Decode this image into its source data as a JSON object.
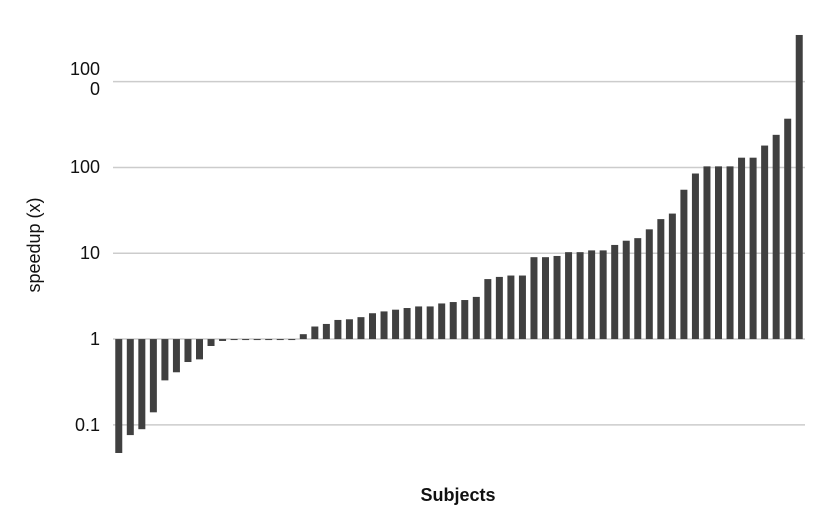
{
  "chart_data": {
    "type": "bar",
    "x_label": "Subjects",
    "y_label": "speedup (x)",
    "categories": [
      null,
      null,
      null,
      null,
      null,
      null,
      null,
      null,
      null,
      null,
      null,
      null,
      null,
      null,
      null,
      null,
      null,
      null,
      null,
      null,
      null,
      null,
      null,
      null,
      null,
      null,
      null,
      null,
      null,
      null,
      null,
      null,
      null,
      null,
      null,
      null,
      null,
      null,
      null,
      null,
      null,
      null,
      null,
      null,
      null,
      null,
      null,
      null,
      null,
      null,
      null,
      null,
      null,
      null,
      null,
      null,
      null,
      null,
      null,
      null
    ],
    "values": [
      0.047,
      0.076,
      0.089,
      0.14,
      0.33,
      0.41,
      0.54,
      0.58,
      0.83,
      0.95,
      1,
      1,
      1,
      1,
      1,
      1,
      1.14,
      1.4,
      1.5,
      1.67,
      1.7,
      1.8,
      2.0,
      2.1,
      2.2,
      2.3,
      2.4,
      2.4,
      2.6,
      2.7,
      2.85,
      3.1,
      5.0,
      5.3,
      5.5,
      5.5,
      9.0,
      9.0,
      9.3,
      10.3,
      10.3,
      10.8,
      10.8,
      12.5,
      14,
      15,
      19,
      25,
      29,
      55,
      85,
      103,
      103,
      103,
      130,
      130,
      180,
      240,
      370,
      3500
    ],
    "color": "#404040",
    "log": true,
    "grid": true,
    "ylim": [
      0.04,
      4000
    ],
    "yticks": [
      0.1,
      1,
      10,
      100,
      1000
    ]
  }
}
